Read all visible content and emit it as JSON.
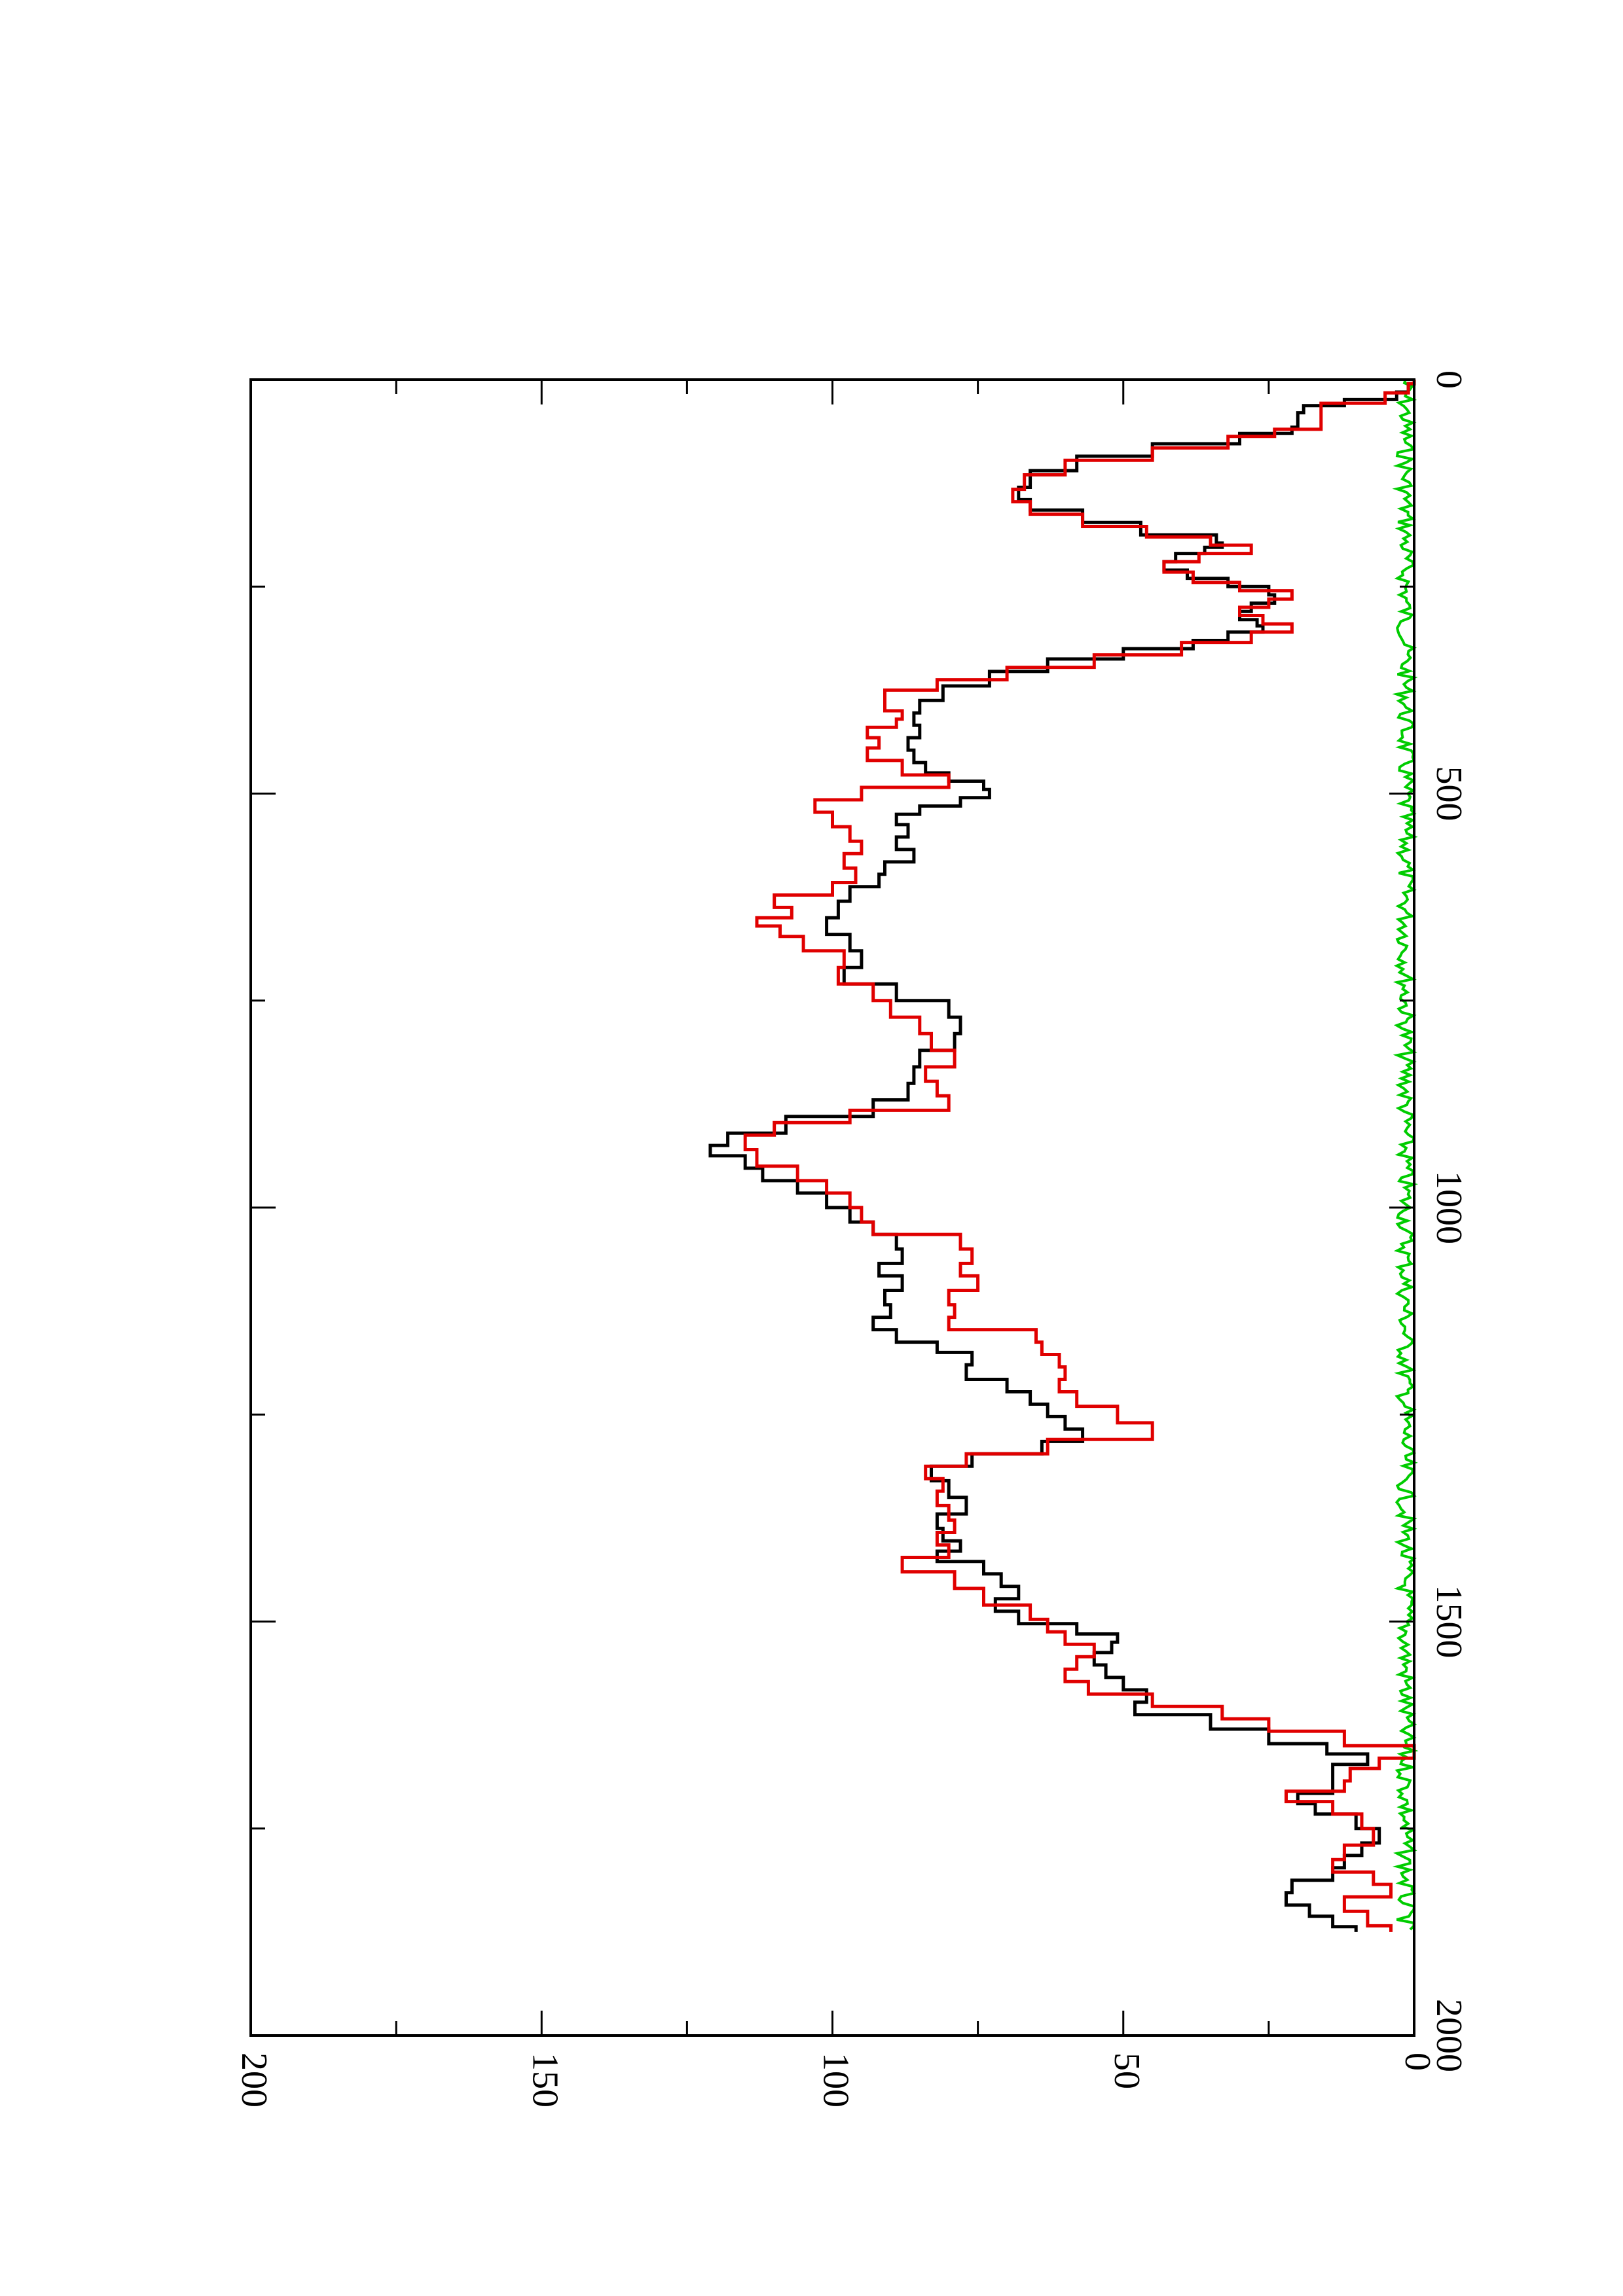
{
  "chart_data": {
    "type": "line",
    "orientation": "rotated-90-clockwise",
    "title": "",
    "xlabel": "",
    "ylabel": "",
    "xlim": [
      0,
      2000
    ],
    "ylim": [
      0,
      200
    ],
    "x_ticks": [
      0,
      500,
      1000,
      1500,
      2000
    ],
    "x_ticks_minor": [
      250,
      750,
      1250,
      1750
    ],
    "y_ticks": [
      0,
      50,
      100,
      150,
      200
    ],
    "y_ticks_minor": [
      25,
      75,
      125,
      175
    ],
    "x_tick_labels": [
      "0",
      "500",
      "1000",
      "1500",
      "2000"
    ],
    "y_tick_labels": [
      "0",
      "50",
      "100",
      "150",
      "200"
    ],
    "grid": false,
    "legend": "none",
    "series": [
      {
        "color": "#000000",
        "points": [
          [
            0,
            0
          ],
          [
            10,
            1
          ],
          [
            20,
            3
          ],
          [
            28,
            12
          ],
          [
            35,
            19
          ],
          [
            45,
            20
          ],
          [
            55,
            20
          ],
          [
            60,
            21
          ],
          [
            70,
            30
          ],
          [
            85,
            45
          ],
          [
            100,
            58
          ],
          [
            120,
            66
          ],
          [
            140,
            68
          ],
          [
            150,
            66
          ],
          [
            165,
            57
          ],
          [
            180,
            47
          ],
          [
            195,
            34
          ],
          [
            200,
            33
          ],
          [
            205,
            36
          ],
          [
            215,
            41
          ],
          [
            225,
            43
          ],
          [
            235,
            39
          ],
          [
            245,
            32
          ],
          [
            255,
            25
          ],
          [
            265,
            24
          ],
          [
            275,
            28
          ],
          [
            285,
            30
          ],
          [
            295,
            27
          ],
          [
            300,
            26
          ],
          [
            310,
            32
          ],
          [
            320,
            38
          ],
          [
            330,
            50
          ],
          [
            345,
            63
          ],
          [
            360,
            73
          ],
          [
            380,
            81
          ],
          [
            395,
            85
          ],
          [
            410,
            86
          ],
          [
            425,
            85
          ],
          [
            440,
            87
          ],
          [
            455,
            86
          ],
          [
            470,
            84
          ],
          [
            480,
            80
          ],
          [
            490,
            74
          ],
          [
            500,
            73
          ],
          [
            510,
            78
          ],
          [
            520,
            85
          ],
          [
            530,
            89
          ],
          [
            545,
            87
          ],
          [
            560,
            89
          ],
          [
            575,
            86
          ],
          [
            590,
            91
          ],
          [
            605,
            92
          ],
          [
            620,
            97
          ],
          [
            640,
            99
          ],
          [
            660,
            101
          ],
          [
            680,
            97
          ],
          [
            700,
            95
          ],
          [
            720,
            98
          ],
          [
            740,
            89
          ],
          [
            760,
            80
          ],
          [
            780,
            78
          ],
          [
            800,
            79
          ],
          [
            820,
            85
          ],
          [
            840,
            86
          ],
          [
            860,
            87
          ],
          [
            880,
            93
          ],
          [
            900,
            108
          ],
          [
            920,
            118
          ],
          [
            930,
            121
          ],
          [
            945,
            115
          ],
          [
            960,
            112
          ],
          [
            975,
            106
          ],
          [
            990,
            101
          ],
          [
            1010,
            97
          ],
          [
            1025,
            93
          ],
          [
            1040,
            89
          ],
          [
            1060,
            88
          ],
          [
            1075,
            92
          ],
          [
            1090,
            88
          ],
          [
            1110,
            91
          ],
          [
            1125,
            90
          ],
          [
            1140,
            93
          ],
          [
            1155,
            89
          ],
          [
            1170,
            82
          ],
          [
            1180,
            76
          ],
          [
            1200,
            77
          ],
          [
            1215,
            70
          ],
          [
            1230,
            66
          ],
          [
            1245,
            63
          ],
          [
            1260,
            60
          ],
          [
            1275,
            57
          ],
          [
            1290,
            64
          ],
          [
            1305,
            76
          ],
          [
            1320,
            83
          ],
          [
            1340,
            80
          ],
          [
            1360,
            77
          ],
          [
            1380,
            82
          ],
          [
            1395,
            81
          ],
          [
            1410,
            78
          ],
          [
            1420,
            82
          ],
          [
            1435,
            74
          ],
          [
            1450,
            71
          ],
          [
            1465,
            68
          ],
          [
            1480,
            72
          ],
          [
            1495,
            68
          ],
          [
            1510,
            58
          ],
          [
            1520,
            51
          ],
          [
            1530,
            52
          ],
          [
            1545,
            55
          ],
          [
            1560,
            53
          ],
          [
            1575,
            50
          ],
          [
            1590,
            46
          ],
          [
            1605,
            48
          ],
          [
            1620,
            35
          ],
          [
            1640,
            25
          ],
          [
            1655,
            15
          ],
          [
            1665,
            8
          ],
          [
            1680,
            14
          ],
          [
            1700,
            14
          ],
          [
            1715,
            20
          ],
          [
            1725,
            17
          ],
          [
            1740,
            10
          ],
          [
            1760,
            6
          ],
          [
            1775,
            9
          ],
          [
            1790,
            12
          ],
          [
            1805,
            14
          ],
          [
            1820,
            21
          ],
          [
            1835,
            22
          ],
          [
            1850,
            18
          ],
          [
            1862,
            14
          ],
          [
            1875,
            10
          ]
        ]
      },
      {
        "color": "#e00000",
        "points": [
          [
            0,
            0
          ],
          [
            10,
            1
          ],
          [
            22,
            5
          ],
          [
            35,
            16
          ],
          [
            45,
            16
          ],
          [
            58,
            16
          ],
          [
            62,
            24
          ],
          [
            75,
            32
          ],
          [
            90,
            45
          ],
          [
            105,
            60
          ],
          [
            125,
            67
          ],
          [
            140,
            69
          ],
          [
            155,
            66
          ],
          [
            170,
            57
          ],
          [
            185,
            46
          ],
          [
            195,
            35
          ],
          [
            205,
            28
          ],
          [
            215,
            37
          ],
          [
            225,
            43
          ],
          [
            240,
            38
          ],
          [
            250,
            30
          ],
          [
            260,
            21
          ],
          [
            270,
            25
          ],
          [
            280,
            30
          ],
          [
            290,
            26
          ],
          [
            300,
            21
          ],
          [
            310,
            28
          ],
          [
            325,
            40
          ],
          [
            340,
            55
          ],
          [
            355,
            70
          ],
          [
            370,
            82
          ],
          [
            380,
            91
          ],
          [
            395,
            91
          ],
          [
            405,
            88
          ],
          [
            415,
            89
          ],
          [
            425,
            94
          ],
          [
            440,
            92
          ],
          [
            450,
            94
          ],
          [
            470,
            88
          ],
          [
            485,
            80
          ],
          [
            500,
            95
          ],
          [
            515,
            103
          ],
          [
            530,
            100
          ],
          [
            550,
            97
          ],
          [
            565,
            95
          ],
          [
            580,
            98
          ],
          [
            600,
            96
          ],
          [
            615,
            100
          ],
          [
            630,
            110
          ],
          [
            645,
            107
          ],
          [
            655,
            113
          ],
          [
            665,
            109
          ],
          [
            680,
            105
          ],
          [
            700,
            98
          ],
          [
            720,
            99
          ],
          [
            740,
            93
          ],
          [
            760,
            90
          ],
          [
            780,
            85
          ],
          [
            800,
            83
          ],
          [
            820,
            79
          ],
          [
            840,
            84
          ],
          [
            855,
            82
          ],
          [
            875,
            80
          ],
          [
            890,
            97
          ],
          [
            905,
            110
          ],
          [
            920,
            115
          ],
          [
            940,
            113
          ],
          [
            960,
            106
          ],
          [
            975,
            101
          ],
          [
            990,
            97
          ],
          [
            1010,
            95
          ],
          [
            1025,
            93
          ],
          [
            1040,
            78
          ],
          [
            1060,
            76
          ],
          [
            1075,
            78
          ],
          [
            1090,
            75
          ],
          [
            1110,
            80
          ],
          [
            1125,
            79
          ],
          [
            1140,
            80
          ],
          [
            1155,
            65
          ],
          [
            1170,
            64
          ],
          [
            1185,
            61
          ],
          [
            1200,
            60
          ],
          [
            1215,
            61
          ],
          [
            1230,
            58
          ],
          [
            1250,
            51
          ],
          [
            1270,
            45
          ],
          [
            1290,
            63
          ],
          [
            1305,
            77
          ],
          [
            1320,
            84
          ],
          [
            1335,
            81
          ],
          [
            1350,
            82
          ],
          [
            1370,
            80
          ],
          [
            1385,
            79
          ],
          [
            1400,
            82
          ],
          [
            1415,
            80
          ],
          [
            1430,
            88
          ],
          [
            1450,
            79
          ],
          [
            1470,
            74
          ],
          [
            1490,
            66
          ],
          [
            1505,
            63
          ],
          [
            1520,
            60
          ],
          [
            1535,
            55
          ],
          [
            1550,
            58
          ],
          [
            1565,
            60
          ],
          [
            1580,
            56
          ],
          [
            1595,
            45
          ],
          [
            1610,
            33
          ],
          [
            1625,
            25
          ],
          [
            1640,
            12
          ],
          [
            1660,
            0
          ],
          [
            1670,
            6
          ],
          [
            1685,
            11
          ],
          [
            1700,
            12
          ],
          [
            1710,
            22
          ],
          [
            1725,
            14
          ],
          [
            1740,
            9
          ],
          [
            1760,
            7
          ],
          [
            1780,
            12
          ],
          [
            1795,
            14
          ],
          [
            1810,
            7
          ],
          [
            1825,
            4
          ],
          [
            1840,
            12
          ],
          [
            1860,
            8
          ],
          [
            1875,
            4
          ]
        ]
      },
      {
        "color": "#00cc00",
        "note_values": "noise band 0-3 across x 0-1875"
      }
    ]
  }
}
